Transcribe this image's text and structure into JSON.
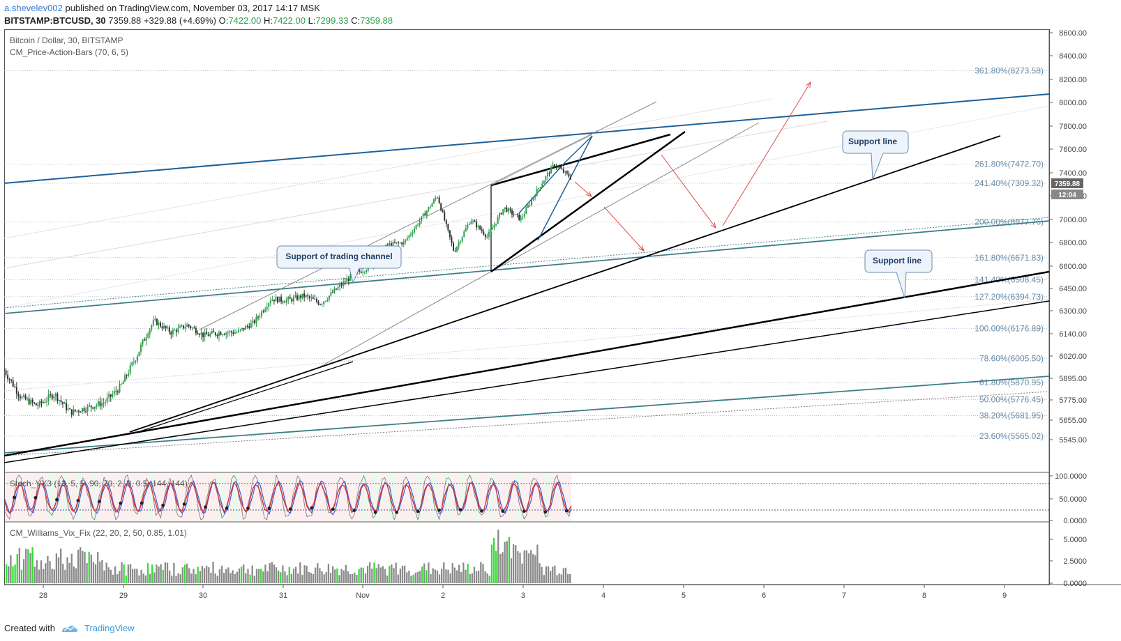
{
  "header": {
    "author": "a.shevelev002",
    "published_text": "published on TradingView.com, November 03, 2017 14:17 MSK",
    "symbol": "BITSTAMP:BTCUSD, 30",
    "last_price": "7359.88",
    "change": "+329.88 (+4.69%)",
    "o_label": "O:",
    "o_value": "7422.00",
    "h_label": "H:",
    "h_value": "7422.00",
    "l_label": "L:",
    "l_value": "7299.33",
    "c_label": "C:",
    "c_value": "7359.88"
  },
  "legend": {
    "instrument": "Bitcoin / Dollar, 30, BITSTAMP",
    "indicator": "CM_Price-Action-Bars (70, 6, 5)"
  },
  "price_axis": {
    "ticks": [
      "8600.00",
      "8400.00",
      "8200.00",
      "8000.00",
      "7800.00",
      "7600.00",
      "7400.00",
      "7200.00",
      "7000.00",
      "6800.00",
      "6600.00",
      "6450.00",
      "6300.00",
      "6140.00",
      "6020.00",
      "5895.00",
      "5775.00",
      "5655.00",
      "5545.00"
    ],
    "last_price_badge": "7359.88",
    "countdown_badge": "12:04"
  },
  "fib_levels": [
    {
      "label": "361.80%(8273.58)",
      "price": 8273.58
    },
    {
      "label": "261.80%(7472.70)",
      "price": 7472.7
    },
    {
      "label": "241.40%(7309.32)",
      "price": 7309.32
    },
    {
      "label": "200.00%(6977.76)",
      "price": 6977.76
    },
    {
      "label": "161.80%(6671.83)",
      "price": 6671.83
    },
    {
      "label": "141.40%(6508.45)",
      "price": 6508.45
    },
    {
      "label": "127.20%(6394.73)",
      "price": 6394.73
    },
    {
      "label": "100.00%(6176.89)",
      "price": 6176.89
    },
    {
      "label": "78.60%(6005.50)",
      "price": 6005.5
    },
    {
      "label": "61.80%(5870.95)",
      "price": 5870.95
    },
    {
      "label": "50.00%(5776.45)",
      "price": 5776.45
    },
    {
      "label": "38.20%(5681.95)",
      "price": 5681.95
    },
    {
      "label": "23.60%(5565.02)",
      "price": 5565.02
    }
  ],
  "callouts": {
    "support_channel": "Support of trading channel",
    "support_line_1": "Support line",
    "support_line_2": "Support line"
  },
  "stoch": {
    "label": "Stoch_VX3 (13, 5, 5, 90, 70, 2, 3, 0.5, 144, 144)",
    "ticks": [
      "100.0000",
      "50.0000",
      "0.0000"
    ]
  },
  "vix": {
    "label": "CM_Williams_Vix_Fix (22, 20, 2, 50, 0.85, 1.01)",
    "ticks": [
      "5.0000",
      "2.5000",
      "0.0000"
    ]
  },
  "time_axis": {
    "labels": [
      "28",
      "29",
      "30",
      "31",
      "Nov",
      "2",
      "3",
      "4",
      "5",
      "6",
      "7",
      "8",
      "9"
    ]
  },
  "footer": {
    "created_with": "Created with",
    "brand": "TradingView"
  },
  "colors": {
    "up": "#2e9e4a",
    "down": "#333333",
    "channel_blue": "#1f5f99",
    "channel_teal": "#3f7d86",
    "fib_text": "#6a8ca8",
    "arrow_red": "#e04a4a",
    "stoch_blue": "#3b5bdb",
    "stoch_red": "#e03131",
    "vix_gray": "#8a8a8a",
    "vix_green": "#33dd33"
  },
  "chart_data": {
    "type": "candlestick",
    "title": "Bitcoin / Dollar, 30, BITSTAMP",
    "ylim": [
      5480,
      8660
    ],
    "x": [
      "28",
      "29",
      "30",
      "31",
      "Nov",
      "2",
      "3"
    ],
    "close_path": [
      {
        "t": "27.9",
        "v": 5940
      },
      {
        "t": "28.0",
        "v": 5790
      },
      {
        "t": "28.3",
        "v": 5740
      },
      {
        "t": "28.6",
        "v": 5810
      },
      {
        "t": "28.9",
        "v": 5700
      },
      {
        "t": "29.2",
        "v": 5730
      },
      {
        "t": "29.5",
        "v": 5760
      },
      {
        "t": "29.8",
        "v": 5850
      },
      {
        "t": "30.0",
        "v": 6030
      },
      {
        "t": "30.1",
        "v": 6230
      },
      {
        "t": "30.4",
        "v": 6150
      },
      {
        "t": "30.7",
        "v": 6200
      },
      {
        "t": "31.0",
        "v": 6130
      },
      {
        "t": "31.3",
        "v": 6150
      },
      {
        "t": "31.5",
        "v": 6150
      },
      {
        "t": "31.7",
        "v": 6220
      },
      {
        "t": "31.9",
        "v": 6380
      },
      {
        "t": "Nov.2",
        "v": 6370
      },
      {
        "t": "Nov.4",
        "v": 6400
      },
      {
        "t": "Nov.5",
        "v": 6350
      },
      {
        "t": "Nov.7",
        "v": 6450
      },
      {
        "t": "Nov.9",
        "v": 6550
      },
      {
        "t": "2.0",
        "v": 6600
      },
      {
        "t": "2.1",
        "v": 6780
      },
      {
        "t": "2.3",
        "v": 6800
      },
      {
        "t": "2.5",
        "v": 7000
      },
      {
        "t": "2.6",
        "v": 7200
      },
      {
        "t": "2.65",
        "v": 6720
      },
      {
        "t": "2.8",
        "v": 7000
      },
      {
        "t": "2.9",
        "v": 6850
      },
      {
        "t": "3.0",
        "v": 7100
      },
      {
        "t": "3.2",
        "v": 7000
      },
      {
        "t": "3.4",
        "v": 7250
      },
      {
        "t": "3.55",
        "v": 7470
      },
      {
        "t": "3.6",
        "v": 7360
      }
    ]
  }
}
